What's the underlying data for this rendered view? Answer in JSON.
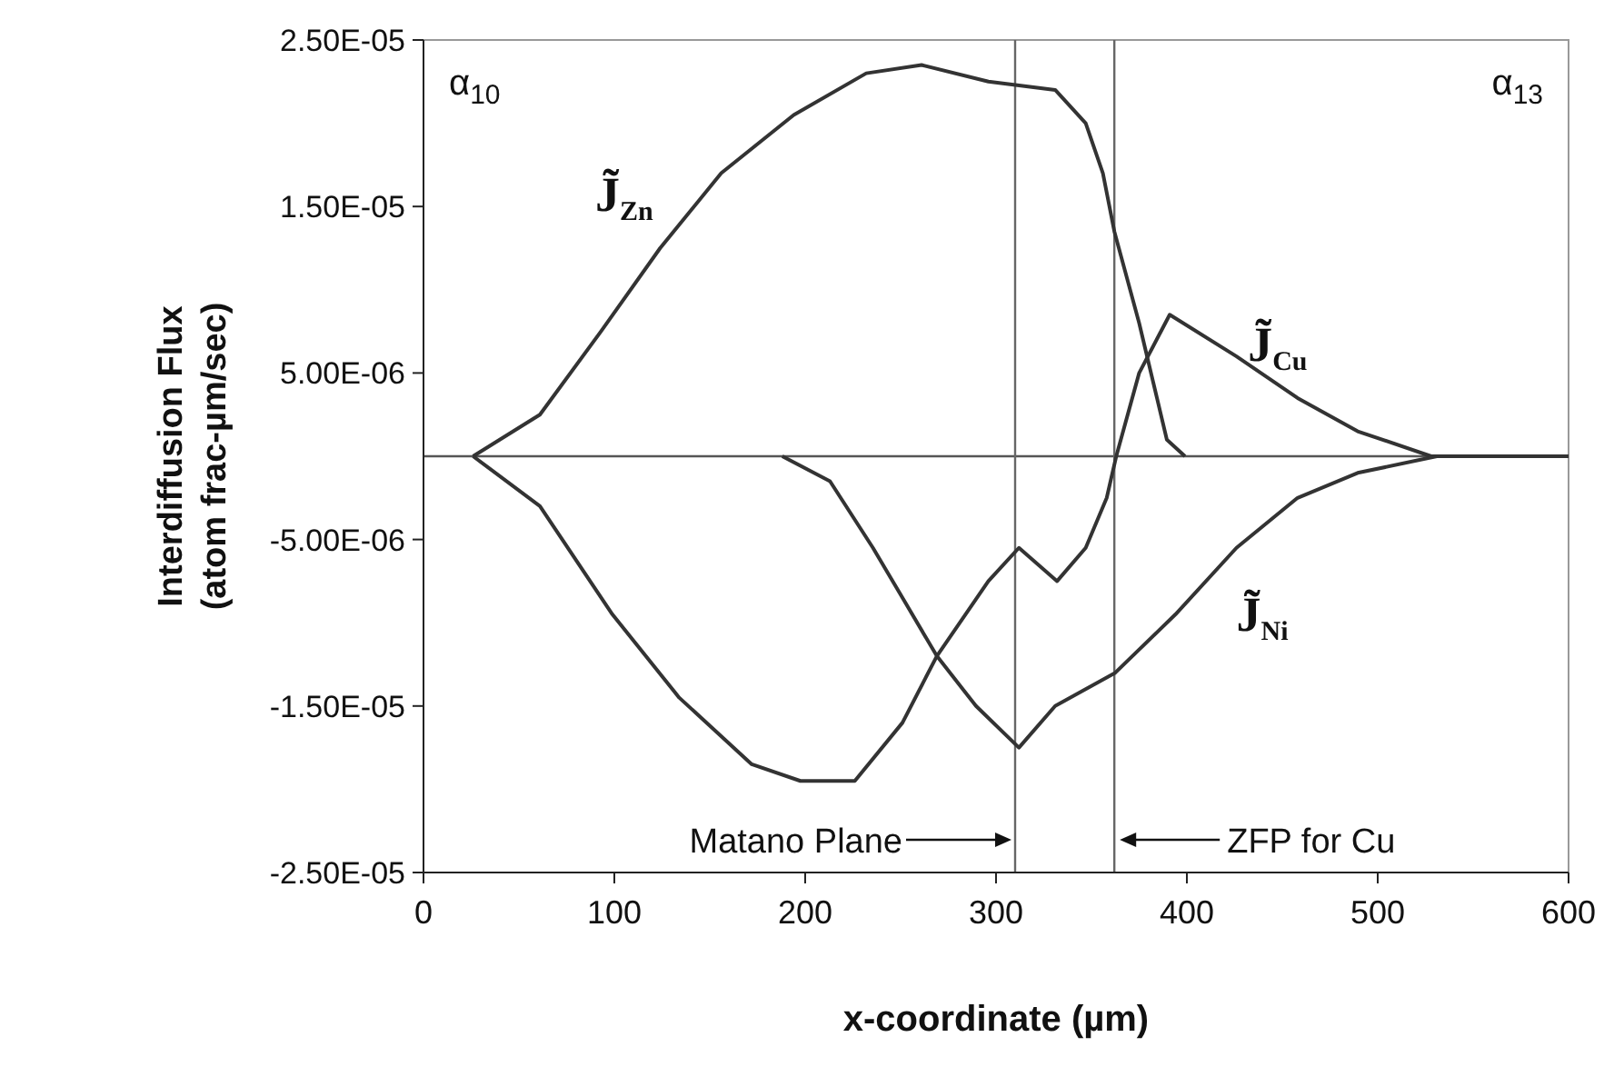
{
  "chart_data": {
    "type": "line",
    "xlabel": "x-coordinate (µm)",
    "ylabel": "Interdiffusion Flux\n(atom frac-µm/sec)",
    "xlim": [
      0,
      600
    ],
    "xticks": [
      0,
      100,
      200,
      300,
      400,
      500,
      600
    ],
    "ylim": [
      -2.5e-05,
      2.5e-05
    ],
    "yticks": [
      {
        "value": -2.5e-05,
        "label": "-2.50E-05"
      },
      {
        "value": -1.5e-05,
        "label": "-1.50E-05"
      },
      {
        "value": -5e-06,
        "label": "-5.00E-06"
      },
      {
        "value": 5e-06,
        "label": "5.00E-06"
      },
      {
        "value": 1.5e-05,
        "label": "1.50E-05"
      },
      {
        "value": 2.5e-05,
        "label": "2.50E-05"
      }
    ],
    "grid": false,
    "legend": false,
    "marker": "none",
    "line_style": "solid",
    "series": [
      {
        "name": "J̃$_{Zn}$",
        "color": "#333333",
        "x": [
          26,
          61,
          93,
          124,
          156,
          194,
          232,
          261,
          296,
          331,
          347,
          356,
          362,
          375,
          389.5,
          399
        ],
        "values": [
          0,
          2.5e-06,
          7.5e-06,
          1.25e-05,
          1.7e-05,
          2.05e-05,
          2.3e-05,
          2.35e-05,
          2.25e-05,
          2.2e-05,
          2e-05,
          1.7e-05,
          1.35e-05,
          8e-06,
          1e-06,
          0
        ]
      },
      {
        "name": "J̃$_{Cu}$",
        "color": "#333333",
        "x": [
          26,
          61,
          99,
          134,
          172,
          197.5,
          226,
          251,
          269,
          296,
          312,
          332,
          347,
          358,
          363,
          375,
          391,
          426,
          458,
          489.5,
          528,
          534,
          600
        ],
        "values": [
          0,
          -3e-06,
          -9.5e-06,
          -1.45e-05,
          -1.85e-05,
          -1.95e-05,
          -1.95e-05,
          -1.6e-05,
          -1.2e-05,
          -7.5e-06,
          -5.5e-06,
          -7.5e-06,
          -5.5e-06,
          -2.5e-06,
          0,
          5e-06,
          8.5e-06,
          6e-06,
          3.5e-06,
          1.5e-06,
          0,
          0,
          0
        ]
      },
      {
        "name": "J̃$_{Ni}$",
        "color": "#333333",
        "x": [
          188,
          213,
          235.5,
          251,
          269,
          289.5,
          312,
          331,
          362.5,
          394,
          426,
          458,
          489.5,
          531
        ],
        "values": [
          0,
          -1.5e-06,
          -5.5e-06,
          -8.5e-06,
          -1.2e-05,
          -1.5e-05,
          -1.75e-05,
          -1.5e-05,
          -1.3e-05,
          -9.5e-06,
          -5.5e-06,
          -2.5e-06,
          -1e-06,
          0
        ]
      }
    ],
    "ref_lines": [
      {
        "axis": "y",
        "value": 0,
        "color": "#555555"
      },
      {
        "axis": "x",
        "value": 310,
        "label": "Matano Plane",
        "color": "#666666"
      },
      {
        "axis": "x",
        "value": 362,
        "label": "ZFP for Cu",
        "color": "#666666"
      }
    ],
    "annotations": [
      "α$_{10}$",
      "α$_{13}$"
    ]
  }
}
